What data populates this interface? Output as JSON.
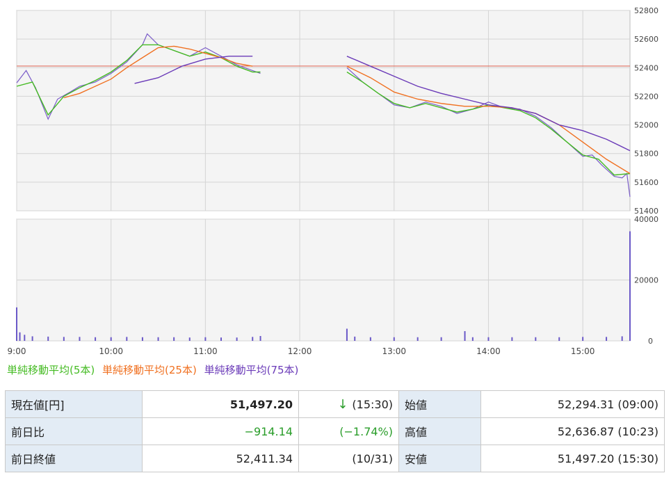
{
  "chart_data": {
    "type": "line",
    "title": "",
    "price_panel": {
      "y_ticks": [
        51400,
        51600,
        51800,
        52000,
        52200,
        52400,
        52600,
        52800
      ],
      "ylim": [
        51400,
        52800
      ],
      "reference_line": {
        "value": 52411.34,
        "color": "#e07060"
      },
      "series": [
        {
          "name": "price",
          "color": "#7a5cc8",
          "x": [
            "9:00",
            "9:06",
            "9:12",
            "9:20",
            "9:26",
            "9:34",
            "9:40",
            "9:50",
            "10:00",
            "10:10",
            "10:20",
            "10:23",
            "10:30",
            "10:40",
            "10:50",
            "11:00",
            "11:10",
            "11:20",
            "11:30",
            "11:35",
            "12:30",
            "12:40",
            "12:50",
            "13:00",
            "13:10",
            "13:20",
            "13:30",
            "13:40",
            "13:50",
            "14:00",
            "14:10",
            "14:20",
            "14:30",
            "14:40",
            "14:50",
            "15:00",
            "15:06",
            "15:12",
            "15:20",
            "15:25",
            "15:28",
            "15:30"
          ],
          "y": [
            52294,
            52380,
            52260,
            52040,
            52180,
            52230,
            52270,
            52300,
            52360,
            52440,
            52560,
            52636,
            52560,
            52520,
            52480,
            52540,
            52480,
            52420,
            52380,
            52360,
            52400,
            52300,
            52220,
            52140,
            52120,
            52160,
            52130,
            52080,
            52110,
            52160,
            52120,
            52110,
            52060,
            51980,
            51880,
            51780,
            51790,
            51720,
            51640,
            51630,
            51660,
            51497
          ]
        },
        {
          "name": "単純移動平均(5本)",
          "color": "#44bb22",
          "x": [
            "9:00",
            "9:10",
            "9:20",
            "9:30",
            "9:40",
            "9:50",
            "10:00",
            "10:10",
            "10:20",
            "10:30",
            "10:40",
            "10:50",
            "11:00",
            "11:10",
            "11:20",
            "11:30",
            "11:35",
            "12:30",
            "12:40",
            "12:50",
            "13:00",
            "13:10",
            "13:20",
            "13:30",
            "13:40",
            "13:50",
            "14:00",
            "14:10",
            "14:20",
            "14:30",
            "14:40",
            "14:50",
            "15:00",
            "15:10",
            "15:20",
            "15:30"
          ],
          "y": [
            52270,
            52300,
            52070,
            52200,
            52260,
            52310,
            52370,
            52450,
            52560,
            52560,
            52520,
            52480,
            52510,
            52470,
            52410,
            52370,
            52370,
            52370,
            52300,
            52220,
            52150,
            52120,
            52150,
            52120,
            52090,
            52110,
            52140,
            52120,
            52100,
            52050,
            51970,
            51880,
            51790,
            51760,
            51650,
            51660
          ]
        },
        {
          "name": "単純移動平均(25本)",
          "color": "#f07020",
          "x": [
            "9:30",
            "9:40",
            "9:50",
            "10:00",
            "10:10",
            "10:20",
            "10:30",
            "10:40",
            "10:50",
            "11:00",
            "11:10",
            "11:20",
            "11:30",
            "12:30",
            "12:45",
            "13:00",
            "13:15",
            "13:30",
            "13:45",
            "14:00",
            "14:15",
            "14:30",
            "14:45",
            "15:00",
            "15:15",
            "15:30"
          ],
          "y": [
            52190,
            52220,
            52270,
            52320,
            52400,
            52470,
            52540,
            52550,
            52530,
            52500,
            52470,
            52430,
            52410,
            52410,
            52330,
            52230,
            52180,
            52150,
            52130,
            52130,
            52120,
            52080,
            52000,
            51880,
            51760,
            51660
          ]
        },
        {
          "name": "単純移動平均(75本)",
          "color": "#6a3ab8",
          "x": [
            "10:15",
            "10:30",
            "10:45",
            "11:00",
            "11:15",
            "11:30",
            "12:30",
            "12:45",
            "13:00",
            "13:15",
            "13:30",
            "13:45",
            "14:00",
            "14:15",
            "14:30",
            "14:45",
            "15:00",
            "15:15",
            "15:30"
          ],
          "y": [
            52290,
            52330,
            52410,
            52460,
            52480,
            52480,
            52480,
            52410,
            52340,
            52270,
            52220,
            52180,
            52140,
            52120,
            52080,
            52000,
            51960,
            51900,
            51820
          ]
        }
      ]
    },
    "volume_panel": {
      "y_ticks": [
        0,
        20000,
        40000
      ],
      "ylim": [
        0,
        40000
      ],
      "series": [
        {
          "name": "volume",
          "color": "#6a58c8",
          "x": [
            "9:00",
            "9:02",
            "9:05",
            "9:10",
            "9:20",
            "9:30",
            "9:40",
            "9:50",
            "10:00",
            "10:10",
            "10:20",
            "10:30",
            "10:40",
            "10:50",
            "11:00",
            "11:10",
            "11:20",
            "11:30",
            "11:35",
            "12:30",
            "12:35",
            "12:45",
            "13:00",
            "13:15",
            "13:30",
            "13:45",
            "13:50",
            "14:00",
            "14:15",
            "14:30",
            "14:45",
            "15:00",
            "15:15",
            "15:25",
            "15:30"
          ],
          "y": [
            11000,
            2800,
            2000,
            1500,
            1400,
            1300,
            1300,
            1200,
            1200,
            1300,
            1200,
            1200,
            1200,
            1100,
            1200,
            1100,
            1100,
            1300,
            1600,
            4000,
            1400,
            1200,
            1200,
            1200,
            1200,
            3200,
            1200,
            1200,
            1200,
            1200,
            1200,
            1300,
            1300,
            1500,
            36000
          ]
        }
      ]
    },
    "x_ticks": [
      "9:00",
      "10:00",
      "11:00",
      "12:00",
      "13:00",
      "14:00",
      "15:00"
    ],
    "xlim": [
      "9:00",
      "15:30"
    ],
    "grid": true
  },
  "legend": {
    "ma5": "単純移動平均(5本)",
    "ma25": "単純移動平均(25本)",
    "ma75": "単純移動平均(75本)"
  },
  "quote": {
    "current_label": "現在値[円]",
    "current_value": "51,497.20",
    "arrow": "↓",
    "current_time": "(15:30)",
    "change_label": "前日比",
    "change_value": "−914.14",
    "change_pct": "(−1.74%)",
    "prev_close_label": "前日終値",
    "prev_close_value": "52,411.34",
    "prev_close_date": "(10/31)",
    "open_label": "始値",
    "open_value": "52,294.31 (09:00)",
    "high_label": "高値",
    "high_value": "52,636.87 (10:23)",
    "low_label": "安値",
    "low_value": "51,497.20 (15:30)"
  },
  "colors": {
    "ma5": "#44bb22",
    "ma25": "#f07020",
    "ma75": "#6a3ab8",
    "grid": "#d4d4d4",
    "panel_bg": "#f4f4f4"
  }
}
